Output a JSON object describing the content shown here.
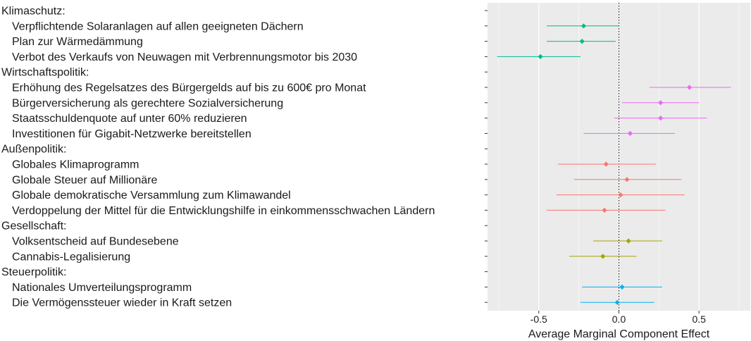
{
  "chart_data": {
    "type": "scatter",
    "subtype": "coefficient-plot-with-error-bars",
    "xlabel": "Average Marginal Component Effect",
    "ylabel": "",
    "xlim": [
      -0.82,
      0.82
    ],
    "xticks": [
      -0.5,
      0.0,
      0.5
    ],
    "xtick_labels": [
      "-0.5",
      "0.0",
      "0.5"
    ],
    "reference_line": 0,
    "grid": true,
    "legend": "none",
    "groups": [
      {
        "name": "Klimaschutz:",
        "color": "#00BA8B",
        "items": [
          {
            "label": "Verpflichtende Solaranlagen auf allen geeigneten Dächern",
            "estimate": -0.22,
            "lower": -0.45,
            "upper": 0.0
          },
          {
            "label": "Plan zur Wärmedämmung",
            "estimate": -0.23,
            "lower": -0.45,
            "upper": -0.02
          },
          {
            "label": "Verbot des Verkaufs von Neuwagen mit Verbrennungsmotor bis 2030",
            "estimate": -0.49,
            "lower": -0.76,
            "upper": -0.24
          }
        ]
      },
      {
        "name": "Wirtschaftspolitik:",
        "color": "#E76BF3",
        "items": [
          {
            "label": "Erhöhung des Regelsatzes des Bürgergelds auf bis zu 600€ pro Monat",
            "estimate": 0.44,
            "lower": 0.19,
            "upper": 0.7
          },
          {
            "label": "Bürgerversicherung als gerechtere Sozialversicherung",
            "estimate": 0.26,
            "lower": 0.02,
            "upper": 0.5
          },
          {
            "label": "Staatsschuldenquote auf unter 60% reduzieren",
            "estimate": 0.26,
            "lower": -0.03,
            "upper": 0.55
          },
          {
            "label": "Investitionen für Gigabit-Netzwerke bereitstellen",
            "estimate": 0.07,
            "lower": -0.22,
            "upper": 0.35
          }
        ]
      },
      {
        "name": "Außenpolitik:",
        "color": "#F8766D",
        "items": [
          {
            "label": "Globales Klimaprogramm",
            "estimate": -0.08,
            "lower": -0.38,
            "upper": 0.23
          },
          {
            "label": "Globale Steuer auf Millionäre",
            "estimate": 0.05,
            "lower": -0.28,
            "upper": 0.39
          },
          {
            "label": "Globale demokratische Versammlung zum Klimawandel",
            "estimate": 0.01,
            "lower": -0.39,
            "upper": 0.41
          },
          {
            "label": "Verdoppelung der Mittel für die Entwicklungshilfe in einkommensschwachen Ländern",
            "estimate": -0.09,
            "lower": -0.45,
            "upper": 0.29
          }
        ]
      },
      {
        "name": "Gesellschaft:",
        "color": "#A3A500",
        "items": [
          {
            "label": "Volksentscheid auf Bundesebene",
            "estimate": 0.06,
            "lower": -0.16,
            "upper": 0.27
          },
          {
            "label": "Cannabis-Legalisierung",
            "estimate": -0.1,
            "lower": -0.31,
            "upper": 0.11
          }
        ]
      },
      {
        "name": "Steuerpolitik:",
        "color": "#00B0F6",
        "items": [
          {
            "label": "Nationales Umverteilungsprogramm",
            "estimate": 0.02,
            "lower": -0.23,
            "upper": 0.27
          },
          {
            "label": "Die Vermögenssteuer wieder in Kraft setzen",
            "estimate": -0.01,
            "lower": -0.24,
            "upper": 0.22
          }
        ]
      }
    ]
  }
}
